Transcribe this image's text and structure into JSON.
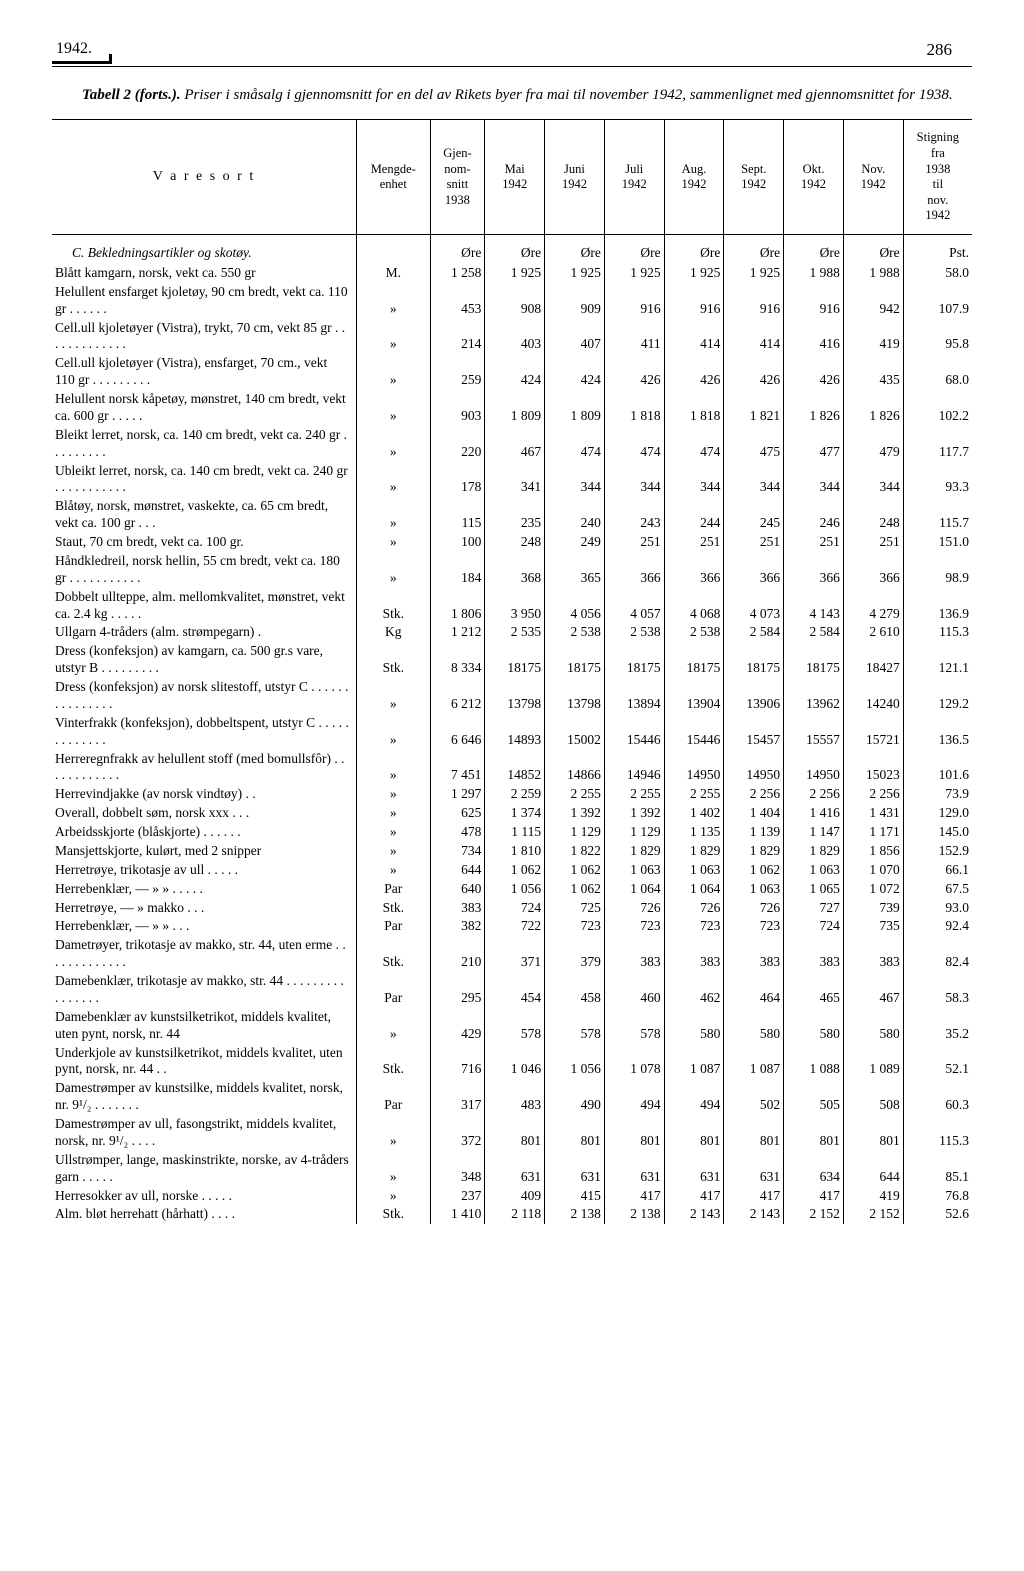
{
  "page": {
    "year": "1942.",
    "number": "286",
    "caption_lead": "Tabell 2 (forts.).",
    "caption_rest": " Priser i småsalg i gjennomsnitt for en del av Rikets byer fra mai til november 1942, sammenlignet med gjennomsnittet for 1938."
  },
  "columns": {
    "c0": "V a r e s o r t",
    "c1": "Mengde-\nenhet",
    "c2": "Gjen-\nnom-\nsnitt\n1938",
    "c3": "Mai\n1942",
    "c4": "Juni\n1942",
    "c5": "Juli\n1942",
    "c6": "Aug.\n1942",
    "c7": "Sept.\n1942",
    "c8": "Okt.\n1942",
    "c9": "Nov.\n1942",
    "c10": "Stigning\nfra\n1938\ntil\nnov.\n1942"
  },
  "section": {
    "title": "C.  Bekledningsartikler og skotøy.",
    "u": [
      "",
      "",
      "Øre",
      "Øre",
      "Øre",
      "Øre",
      "Øre",
      "Øre",
      "Øre",
      "Øre",
      "Pst."
    ]
  },
  "rows": [
    {
      "d": "Blått kamgarn, norsk, vekt ca. 550 gr",
      "u": "M.",
      "v": [
        "1 258",
        "1 925",
        "1 925",
        "1 925",
        "1 925",
        "1 925",
        "1 988",
        "1 988",
        "58.0"
      ]
    },
    {
      "d": "Helullent ensfarget kjoletøy, 90 cm bredt, vekt ca. 110 gr  . . . . . .",
      "u": "»",
      "v": [
        "453",
        "908",
        "909",
        "916",
        "916",
        "916",
        "916",
        "942",
        "107.9"
      ]
    },
    {
      "d": "Cell.ull kjoletøyer (Vistra), trykt, 70 cm, vekt 85 gr . . . . . . . . . . . . .",
      "u": "»",
      "v": [
        "214",
        "403",
        "407",
        "411",
        "414",
        "414",
        "416",
        "419",
        "95.8"
      ]
    },
    {
      "d": "Cell.ull kjoletøyer (Vistra), ensfarget, 70 cm., vekt 110 gr . . . . . . . . .",
      "u": "»",
      "v": [
        "259",
        "424",
        "424",
        "426",
        "426",
        "426",
        "426",
        "435",
        "68.0"
      ]
    },
    {
      "d": "Helullent norsk kåpetøy, mønstret, 140 cm bredt, vekt ca. 600 gr  . . . . .",
      "u": "»",
      "v": [
        "903",
        "1 809",
        "1 809",
        "1 818",
        "1 818",
        "1 821",
        "1 826",
        "1 826",
        "102.2"
      ]
    },
    {
      "d": "Bleikt lerret, norsk, ca. 140 cm bredt, vekt ca. 240 gr  . . . . . . . . .",
      "u": "»",
      "v": [
        "220",
        "467",
        "474",
        "474",
        "474",
        "475",
        "477",
        "479",
        "117.7"
      ]
    },
    {
      "d": "Ubleikt lerret, norsk, ca. 140 cm bredt, vekt ca. 240 gr . . . . . . . . . . .",
      "u": "»",
      "v": [
        "178",
        "341",
        "344",
        "344",
        "344",
        "344",
        "344",
        "344",
        "93.3"
      ]
    },
    {
      "d": "Blåtøy, norsk, mønstret, vaskekte, ca. 65 cm bredt, vekt ca. 100 gr  . . .",
      "u": "»",
      "v": [
        "115",
        "235",
        "240",
        "243",
        "244",
        "245",
        "246",
        "248",
        "115.7"
      ]
    },
    {
      "d": "Staut, 70 cm bredt, vekt ca. 100 gr.",
      "u": "»",
      "v": [
        "100",
        "248",
        "249",
        "251",
        "251",
        "251",
        "251",
        "251",
        "151.0"
      ]
    },
    {
      "d": "Håndkledreil, norsk hellin, 55 cm bredt, vekt ca. 180 gr . . . . . . . . . . .",
      "u": "»",
      "v": [
        "184",
        "368",
        "365",
        "366",
        "366",
        "366",
        "366",
        "366",
        "98.9"
      ]
    },
    {
      "d": "Dobbelt ullteppe, alm. mellomkvalitet, mønstret, vekt ca. 2.4 kg . . . . .",
      "u": "Stk.",
      "v": [
        "1 806",
        "3 950",
        "4 056",
        "4 057",
        "4 068",
        "4 073",
        "4 143",
        "4 279",
        "136.9"
      ]
    },
    {
      "d": "Ullgarn 4-tråders (alm. strømpegarn) .",
      "u": "Kg",
      "v": [
        "1 212",
        "2 535",
        "2 538",
        "2 538",
        "2 538",
        "2 584",
        "2 584",
        "2 610",
        "115.3"
      ]
    },
    {
      "d": "Dress (konfeksjon) av kamgarn, ca. 500 gr.s vare, utstyr B . . . . . . . . .",
      "u": "Stk.",
      "v": [
        "8 334",
        "18175",
        "18175",
        "18175",
        "18175",
        "18175",
        "18175",
        "18427",
        "121.1"
      ]
    },
    {
      "d": "Dress (konfeksjon) av norsk slitestoff, utstyr C . . . . . . . . . . . . . . .",
      "u": "»",
      "v": [
        "6 212",
        "13798",
        "13798",
        "13894",
        "13904",
        "13906",
        "13962",
        "14240",
        "129.2"
      ]
    },
    {
      "d": "Vinterfrakk (konfeksjon), dobbeltspent, utstyr C . . . . . . . . . . . . .",
      "u": "»",
      "v": [
        "6 646",
        "14893",
        "15002",
        "15446",
        "15446",
        "15457",
        "15557",
        "15721",
        "136.5"
      ]
    },
    {
      "d": "Herreregnfrakk av helullent stoff (med bomullsfôr) . . . . . . . . . . . .",
      "u": "»",
      "v": [
        "7 451",
        "14852",
        "14866",
        "14946",
        "14950",
        "14950",
        "14950",
        "15023",
        "101.6"
      ]
    },
    {
      "d": "Herrevindjakke (av norsk vindtøy) . .",
      "u": "»",
      "v": [
        "1 297",
        "2 259",
        "2 255",
        "2 255",
        "2 255",
        "2 256",
        "2 256",
        "2 256",
        "73.9"
      ]
    },
    {
      "d": "Overall, dobbelt søm, norsk xxx . . .",
      "u": "»",
      "v": [
        "625",
        "1 374",
        "1 392",
        "1 392",
        "1 402",
        "1 404",
        "1 416",
        "1 431",
        "129.0"
      ]
    },
    {
      "d": "Arbeidsskjorte (blåskjorte) . . . . . .",
      "u": "»",
      "v": [
        "478",
        "1 115",
        "1 129",
        "1 129",
        "1 135",
        "1 139",
        "1 147",
        "1 171",
        "145.0"
      ]
    },
    {
      "d": "Mansjettskjorte, kulørt, med 2 snipper",
      "u": "»",
      "v": [
        "734",
        "1 810",
        "1 822",
        "1 829",
        "1 829",
        "1 829",
        "1 829",
        "1 856",
        "152.9"
      ]
    },
    {
      "d": "Herretrøye, trikotasje av ull . . . . .",
      "u": "»",
      "v": [
        "644",
        "1 062",
        "1 062",
        "1 063",
        "1 063",
        "1 062",
        "1 063",
        "1 070",
        "66.1"
      ]
    },
    {
      "d": "Herrebenklær,     —     »     » . . . . .",
      "u": "Par",
      "v": [
        "640",
        "1 056",
        "1 062",
        "1 064",
        "1 064",
        "1 063",
        "1 065",
        "1 072",
        "67.5"
      ]
    },
    {
      "d": "Herretrøye,        —     »   makko  . . .",
      "u": "Stk.",
      "v": [
        "383",
        "724",
        "725",
        "726",
        "726",
        "726",
        "727",
        "739",
        "93.0"
      ]
    },
    {
      "d": "Herrebenklær,     —     »     »     . . .",
      "u": "Par",
      "v": [
        "382",
        "722",
        "723",
        "723",
        "723",
        "723",
        "724",
        "735",
        "92.4"
      ]
    },
    {
      "d": "Dametrøyer, trikotasje av makko, str. 44, uten erme . . . . . . . . . . . . .",
      "u": "Stk.",
      "v": [
        "210",
        "371",
        "379",
        "383",
        "383",
        "383",
        "383",
        "383",
        "82.4"
      ]
    },
    {
      "d": "Damebenklær, trikotasje av makko, str. 44 . . . . . . . . . . . . . . . .",
      "u": "Par",
      "v": [
        "295",
        "454",
        "458",
        "460",
        "462",
        "464",
        "465",
        "467",
        "58.3"
      ]
    },
    {
      "d": "Damebenklær av kunstsilketrikot, middels kvalitet, uten pynt, norsk, nr. 44",
      "u": "»",
      "v": [
        "429",
        "578",
        "578",
        "578",
        "580",
        "580",
        "580",
        "580",
        "35.2"
      ]
    },
    {
      "d": "Underkjole av kunstsilketrikot, middels kvalitet, uten pynt, norsk, nr. 44 . .",
      "u": "Stk.",
      "v": [
        "716",
        "1 046",
        "1 056",
        "1 078",
        "1 087",
        "1 087",
        "1 088",
        "1 089",
        "52.1"
      ]
    },
    {
      "d": "Damestrømper av kunstsilke, middels kvalitet, norsk, nr. 9¹/₂ . . . . . . .",
      "u": "Par",
      "v": [
        "317",
        "483",
        "490",
        "494",
        "494",
        "502",
        "505",
        "508",
        "60.3"
      ]
    },
    {
      "d": "Damestrømper av ull, fasongstrikt, middels kvalitet, norsk, nr. 9¹/₂  . . . .",
      "u": "»",
      "v": [
        "372",
        "801",
        "801",
        "801",
        "801",
        "801",
        "801",
        "801",
        "115.3"
      ]
    },
    {
      "d": "Ullstrømper, lange, maskinstrikte, norske, av 4-tråders garn  . . . . .",
      "u": "»",
      "v": [
        "348",
        "631",
        "631",
        "631",
        "631",
        "631",
        "634",
        "644",
        "85.1"
      ]
    },
    {
      "d": "Herresokker av ull, norske   . . . . .",
      "u": "»",
      "v": [
        "237",
        "409",
        "415",
        "417",
        "417",
        "417",
        "417",
        "419",
        "76.8"
      ]
    },
    {
      "d": "Alm. bløt herrehatt (hårhatt) . . . .",
      "u": "Stk.",
      "v": [
        "1 410",
        "2 118",
        "2 138",
        "2 138",
        "2 143",
        "2 143",
        "2 152",
        "2 152",
        "52.6"
      ]
    }
  ]
}
